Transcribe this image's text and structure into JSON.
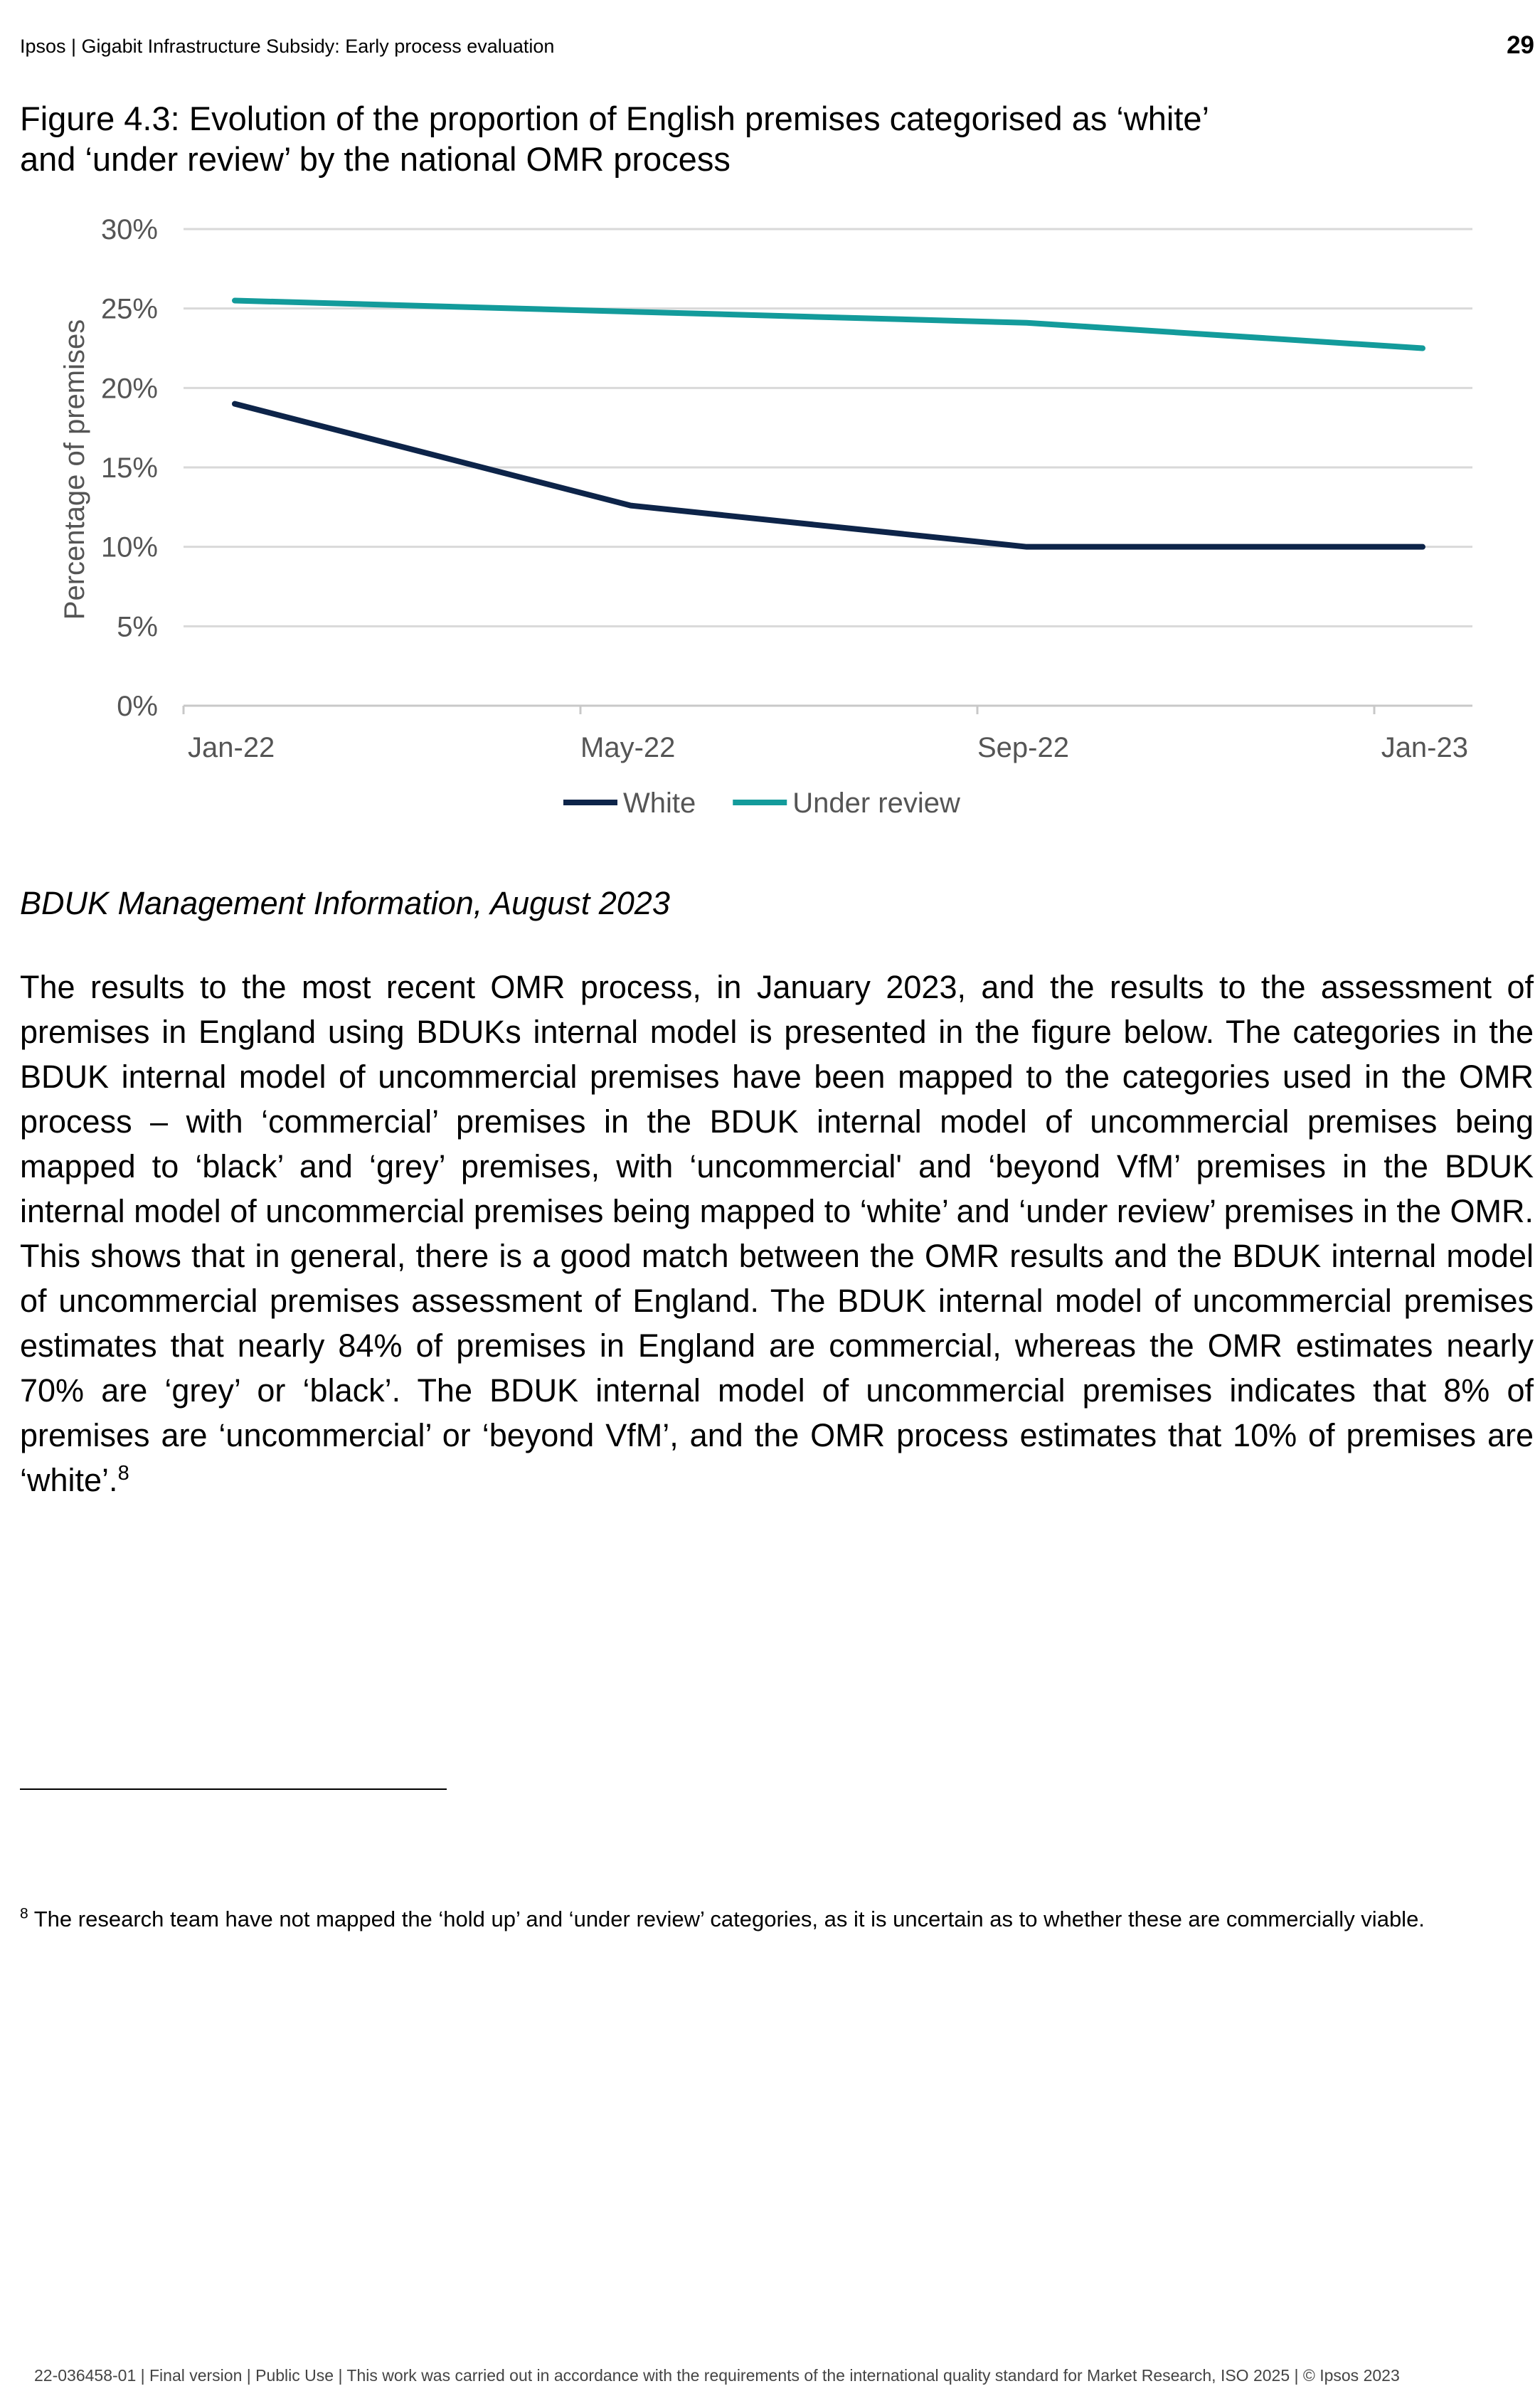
{
  "header": {
    "title": "Ipsos | Gigabit Infrastructure Subsidy: Early process evaluation",
    "page_number": "29"
  },
  "figure": {
    "title": "Figure 4.3: Evolution of the proportion of English premises categorised as ‘white’ and ‘under review’ by the national OMR process"
  },
  "chart_data": {
    "type": "line",
    "title": "",
    "xlabel": "",
    "ylabel": "Percentage of premises",
    "categories": [
      "Jan-22",
      "May-22",
      "Sep-22",
      "Jan-23"
    ],
    "y_ticks": [
      "0%",
      "5%",
      "10%",
      "15%",
      "20%",
      "25%",
      "30%"
    ],
    "ylim": [
      0,
      30
    ],
    "grid": "horizontal",
    "legend_position": "bottom",
    "series": [
      {
        "name": "White",
        "values": [
          19.0,
          12.6,
          10.0,
          10.0
        ],
        "color": "#0d2449"
      },
      {
        "name": "Under review",
        "values": [
          25.5,
          24.8,
          24.1,
          22.5
        ],
        "color": "#139b9b"
      }
    ]
  },
  "source": "BDUK Management Information, August 2023",
  "body": {
    "paragraph": "The results to the most recent OMR process, in January 2023, and the results to the assessment of premises in England using BDUKs internal model is presented in the figure below. The categories in the BDUK internal model of uncommercial premises have been mapped to the categories used in the OMR process – with ‘commercial’ premises in the BDUK internal model of uncommercial premises being mapped to ‘black’ and ‘grey’ premises, with ‘uncommercial' and ‘beyond VfM’ premises in the BDUK internal model of uncommercial premises being mapped to ‘white’ and ‘under review’ premises in the OMR. This shows that in general, there is a good match between the OMR results and the BDUK internal model of uncommercial premises assessment of England. The BDUK internal model of uncommercial premises estimates that nearly 84% of premises in England are commercial, whereas the OMR estimates nearly 70% are ‘grey’ or ‘black’. The BDUK internal model of uncommercial premises indicates that 8% of premises are ‘uncommercial’ or ‘beyond VfM’, and the OMR process estimates that 10% of premises are ‘white’.",
    "footnote_ref": "8"
  },
  "footnote": {
    "number": "8",
    "text": " The research team have not mapped the ‘hold up’ and ‘under review’ categories, as it is uncertain as to whether these are commercially viable."
  },
  "footer": {
    "text": "22-036458-01 | Final version | Public Use | This work was carried out in accordance with the requirements of the international quality standard for Market Research, ISO 2025 | © Ipsos 2023"
  }
}
